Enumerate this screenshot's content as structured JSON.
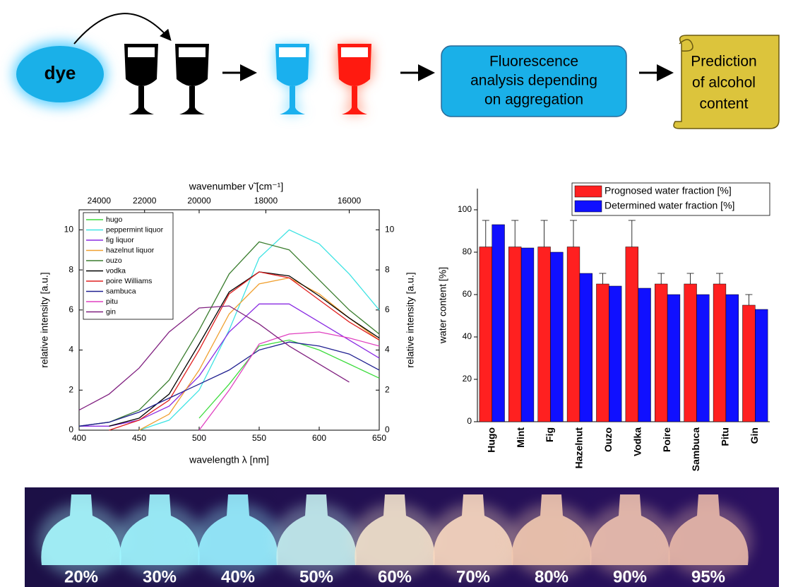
{
  "diagram": {
    "dye": "dye",
    "analysis": [
      "Fluorescence",
      "analysis depending",
      "on aggregation"
    ],
    "prediction": [
      "Prediction",
      "of alcohol",
      "content"
    ]
  },
  "chart_data": [
    {
      "type": "line",
      "x_label": "wavelength λ [nm]",
      "y_label": "relative intensity [a.u.]",
      "y2_label": "relative intensity [a.u.]",
      "x2_label": "wavenumber ν̃ [cm⁻¹]",
      "x": [
        400,
        425,
        450,
        475,
        500,
        525,
        550,
        575,
        600,
        625,
        650
      ],
      "xlim": [
        400,
        650
      ],
      "xticks": [
        400,
        450,
        500,
        550,
        600,
        650
      ],
      "x2lim": [
        25000,
        15385
      ],
      "x2scale": "reciprocal",
      "x2ticks": [
        24000,
        22000,
        20000,
        18000,
        16000
      ],
      "ylim": [
        0,
        11
      ],
      "yticks": [
        0,
        2,
        4,
        6,
        8,
        10
      ],
      "y2lim": [
        0,
        11
      ],
      "y2ticks": [
        0,
        2,
        4,
        6,
        8,
        10
      ],
      "legend": "top-left",
      "series": [
        {
          "name": "hugo",
          "color": "#3ddc3d",
          "values": [
            null,
            null,
            null,
            null,
            0.6,
            2.3,
            4.2,
            4.5,
            4.0,
            3.3,
            2.6
          ]
        },
        {
          "name": "peppermint liquor",
          "color": "#3fe3e3",
          "values": [
            null,
            null,
            0,
            0.5,
            2.0,
            5.0,
            8.6,
            10.0,
            9.3,
            7.8,
            6.0
          ]
        },
        {
          "name": "fig liquor",
          "color": "#8a2be2",
          "values": [
            0.2,
            0.2,
            0.5,
            1.2,
            2.7,
            4.9,
            6.3,
            6.3,
            5.4,
            4.5,
            3.6
          ]
        },
        {
          "name": "hazelnut liquor",
          "color": "#f0a030",
          "values": [
            null,
            null,
            0,
            0.8,
            3.0,
            5.8,
            7.3,
            7.6,
            6.8,
            5.6,
            4.5
          ]
        },
        {
          "name": "ouzo",
          "color": "#3a7d2e",
          "values": [
            0.2,
            0.4,
            1.0,
            2.5,
            5.0,
            7.8,
            9.4,
            9.0,
            7.5,
            6.0,
            4.8
          ]
        },
        {
          "name": "vodka",
          "color": "#000000",
          "values": [
            null,
            0.2,
            0.6,
            1.8,
            4.3,
            6.9,
            7.9,
            7.7,
            6.7,
            5.6,
            4.6
          ]
        },
        {
          "name": "poire Williams",
          "color": "#e02020",
          "values": [
            null,
            0,
            0.5,
            1.5,
            4.0,
            6.8,
            7.9,
            7.6,
            6.5,
            5.4,
            4.5
          ]
        },
        {
          "name": "sambuca",
          "color": "#202090",
          "values": [
            0.2,
            0.4,
            0.9,
            1.6,
            2.3,
            3.0,
            4.0,
            4.4,
            4.2,
            3.8,
            3.0
          ]
        },
        {
          "name": "pitu",
          "color": "#e040c0",
          "values": [
            null,
            null,
            null,
            null,
            0,
            2.0,
            4.3,
            4.8,
            4.9,
            4.6,
            4.2
          ]
        },
        {
          "name": "gin",
          "color": "#802080",
          "values": [
            1.0,
            1.8,
            3.1,
            4.9,
            6.1,
            6.2,
            5.3,
            4.2,
            3.3,
            2.4,
            null
          ]
        }
      ]
    },
    {
      "type": "bar",
      "y_label": "water content [%]",
      "categories": [
        "Hugo",
        "Mint",
        "Fig",
        "Hazelnut",
        "Ouzo",
        "Vodka",
        "Poire",
        "Sambuca",
        "Pitu",
        "Gin"
      ],
      "ylim": [
        0,
        110
      ],
      "yticks": [
        0,
        20,
        40,
        60,
        80,
        100
      ],
      "legend": "top-right",
      "series": [
        {
          "name": "Prognosed water fraction [%]",
          "color": "#ff2020",
          "values": [
            82.5,
            82.5,
            82.5,
            82.5,
            65,
            82.5,
            65,
            65,
            65,
            55
          ],
          "errors": [
            12.5,
            12.5,
            12.5,
            12.5,
            5,
            12.5,
            5,
            5,
            5,
            5
          ]
        },
        {
          "name": "Determined water fraction [%]",
          "color": "#1010ff",
          "values": [
            93,
            82,
            80,
            70,
            64,
            63,
            60,
            60,
            60,
            53
          ]
        }
      ]
    }
  ],
  "photo": {
    "labels": [
      "20%",
      "30%",
      "40%",
      "50%",
      "60%",
      "70%",
      "80%",
      "90%",
      "95%"
    ]
  }
}
